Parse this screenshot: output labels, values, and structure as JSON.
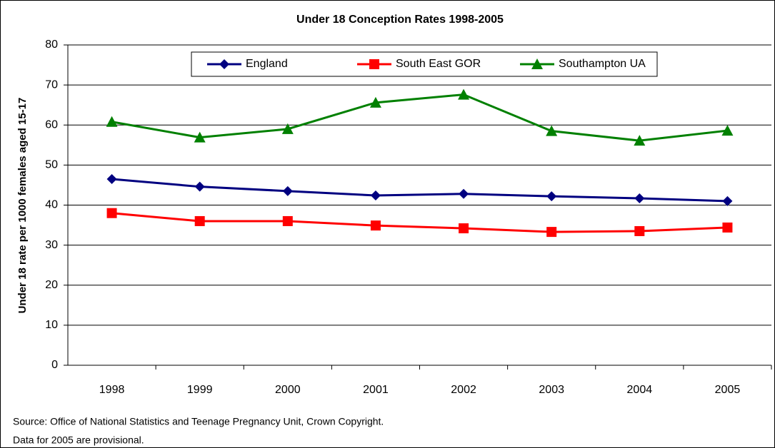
{
  "chart_data": {
    "type": "line",
    "title": "Under 18 Conception Rates 1998-2005",
    "y_label": "Under 18 rate per 1000 females aged 15-17",
    "categories": [
      "1998",
      "1999",
      "2000",
      "2001",
      "2002",
      "2003",
      "2004",
      "2005"
    ],
    "series": [
      {
        "name": "England",
        "color": "#000080",
        "marker": "diamond",
        "values": [
          46.5,
          44.6,
          43.5,
          42.4,
          42.8,
          42.2,
          41.7,
          41.0
        ]
      },
      {
        "name": "South East GOR",
        "color": "#ff0000",
        "marker": "square",
        "values": [
          38.0,
          36.0,
          36.0,
          34.9,
          34.2,
          33.3,
          33.5,
          34.4
        ]
      },
      {
        "name": "Southampton UA",
        "color": "#008000",
        "marker": "triangle",
        "values": [
          60.8,
          56.9,
          59.0,
          65.6,
          67.6,
          58.5,
          56.1,
          58.6
        ]
      }
    ],
    "ylim": [
      0,
      80
    ],
    "yticks": [
      0,
      10,
      20,
      30,
      40,
      50,
      60,
      70,
      80
    ],
    "grid": true,
    "legend": "top",
    "notes": [
      "Source: Office of National Statistics and Teenage Pregnancy Unit, Crown Copyright.",
      "Data for 2005 are provisional."
    ]
  }
}
